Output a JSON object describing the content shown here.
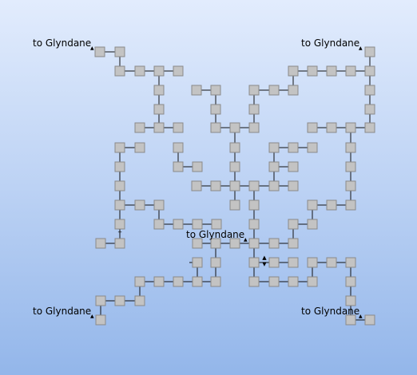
{
  "exits": [
    {
      "id": "nw",
      "label": "to Glyndane"
    },
    {
      "id": "ne",
      "label": "to Glyndane"
    },
    {
      "id": "sw",
      "label": "to Glyndane"
    },
    {
      "id": "se",
      "label": "to Glyndane"
    },
    {
      "id": "center",
      "label": "to Glyndane"
    }
  ],
  "colors": {
    "tile": "#c3c3c3",
    "tile_border": "#8a8a8a",
    "wire": "#111111",
    "bg_top": "#e2ecfd",
    "bg_bottom": "#93b6ea"
  }
}
